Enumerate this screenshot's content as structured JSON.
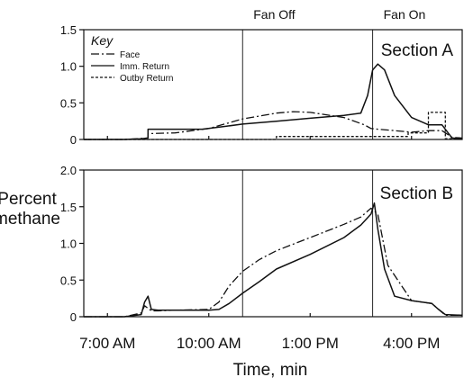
{
  "chart_data": [
    {
      "type": "line",
      "panel_label": "Section A",
      "ylim": [
        0,
        1.5
      ],
      "yticks": [
        "1.5",
        "1.0",
        "0.5",
        "0"
      ],
      "legend": {
        "title": "Key",
        "placement": "top-left",
        "entries": [
          "Face",
          "Imm. Return",
          "Outby Return"
        ]
      },
      "series": [
        {
          "name": "Face",
          "style": "dash-dot",
          "x": [
            6.3,
            7.5,
            8.2,
            8.2,
            9.0,
            10.0,
            11.0,
            12.0,
            12.5,
            13.0,
            14.0,
            14.6,
            14.8,
            15.0,
            15.5,
            16.0,
            16.5,
            16.9,
            17.2,
            17.5
          ],
          "y": [
            0.0,
            0.0,
            0.02,
            0.08,
            0.09,
            0.15,
            0.28,
            0.36,
            0.38,
            0.37,
            0.3,
            0.2,
            0.15,
            0.14,
            0.12,
            0.1,
            0.12,
            0.12,
            0.03,
            0.02
          ]
        },
        {
          "name": "Imm. Return",
          "style": "solid",
          "x": [
            6.3,
            7.5,
            8.0,
            8.2,
            8.2,
            9.0,
            9.8,
            10.5,
            11.0,
            12.0,
            13.0,
            14.0,
            14.5,
            14.7,
            14.85,
            15.0,
            15.2,
            15.5,
            16.0,
            16.5,
            16.9,
            17.2,
            17.5
          ],
          "y": [
            0.0,
            0.0,
            0.01,
            0.02,
            0.14,
            0.14,
            0.14,
            0.18,
            0.21,
            0.25,
            0.29,
            0.33,
            0.36,
            0.6,
            0.95,
            1.03,
            0.95,
            0.6,
            0.3,
            0.2,
            0.2,
            0.02,
            0.01
          ]
        },
        {
          "name": "Outby Return",
          "style": "dotted",
          "x": [
            6.3,
            8.0,
            10.0,
            12.0,
            12.0,
            14.0,
            15.9,
            15.9,
            16.5,
            16.5,
            17.0,
            17.0,
            17.5
          ],
          "y": [
            0.0,
            0.0,
            0.0,
            0.0,
            0.04,
            0.04,
            0.04,
            0.09,
            0.09,
            0.37,
            0.37,
            0.01,
            0.01
          ]
        }
      ]
    },
    {
      "type": "line",
      "panel_label": "Section B",
      "ylim": [
        0,
        2.0
      ],
      "yticks": [
        "2.0",
        "1.5",
        "1.0",
        "0.5",
        "0"
      ],
      "series": [
        {
          "style": "dash-dot",
          "x": [
            6.3,
            7.5,
            8.0,
            8.1,
            8.3,
            8.5,
            9.0,
            10.0,
            10.3,
            10.6,
            11.0,
            11.5,
            12.0,
            13.0,
            14.0,
            14.5,
            14.8,
            15.0,
            15.3,
            16.0,
            16.6,
            17.0,
            17.5
          ],
          "y": [
            0.0,
            0.0,
            0.05,
            0.15,
            0.08,
            0.08,
            0.09,
            0.1,
            0.2,
            0.42,
            0.62,
            0.78,
            0.9,
            1.08,
            1.26,
            1.36,
            1.48,
            1.4,
            0.7,
            0.22,
            0.18,
            0.02,
            0.02
          ]
        },
        {
          "style": "solid",
          "x": [
            6.3,
            7.5,
            8.0,
            8.1,
            8.2,
            8.3,
            8.5,
            9.0,
            10.0,
            10.3,
            10.6,
            11.0,
            11.5,
            12.0,
            13.0,
            14.0,
            14.5,
            14.8,
            14.9,
            15.0,
            15.2,
            15.5,
            16.0,
            16.6,
            16.8,
            17.0,
            17.5
          ],
          "y": [
            0.0,
            0.0,
            0.03,
            0.2,
            0.28,
            0.1,
            0.09,
            0.09,
            0.09,
            0.1,
            0.18,
            0.32,
            0.48,
            0.65,
            0.85,
            1.08,
            1.25,
            1.4,
            1.55,
            1.2,
            0.65,
            0.28,
            0.22,
            0.18,
            0.1,
            0.03,
            0.02
          ]
        }
      ]
    }
  ],
  "shared_axis": {
    "x_range": [
      6.3,
      17.5
    ],
    "x_ticks": [
      {
        "value": 7,
        "label": "7:00 AM"
      },
      {
        "value": 10,
        "label": "10:00 AM"
      },
      {
        "value": 13,
        "label": "1:00 PM"
      },
      {
        "value": 16,
        "label": "4:00 PM"
      }
    ],
    "xlabel": "Time, min",
    "ylabel_line1": "Percent",
    "ylabel_line2": "methane"
  },
  "events": [
    {
      "label": "Fan Off",
      "x": 11.0
    },
    {
      "label": "Fan On",
      "x": 14.85
    }
  ]
}
